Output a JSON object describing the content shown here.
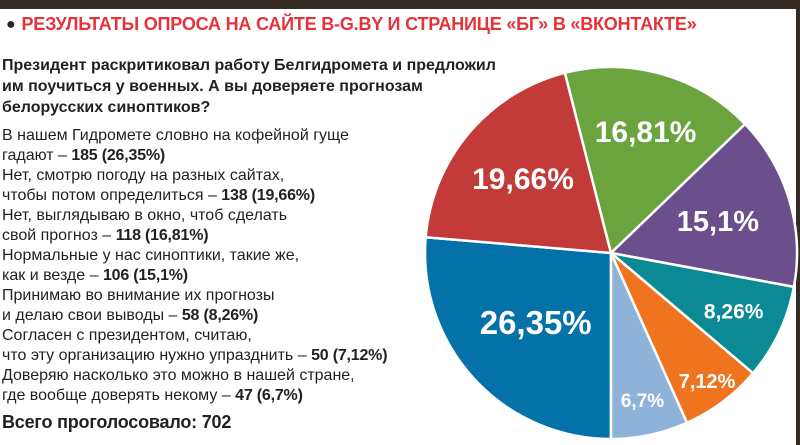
{
  "page": {
    "title_bullet": "●",
    "title": "РЕЗУЛЬТАТЫ ОПРОСА НА САЙТЕ B-G.BY И СТРАНИЦЕ «БГ» В «ВКОНТАКТЕ»",
    "question": "Президент раскритиковал работу Белгидромета и предложил\nим поучиться у военных. А вы доверяете прогнозам\nбелорусских синоптиков?",
    "answers": [
      {
        "text": "В нашем Гидромете словно на кофейной гуще\nгадают – ",
        "value": "185 (26,35%)"
      },
      {
        "text": "Нет, смотрю погоду на разных сайтах,\nчтобы потом определиться – ",
        "value": "138 (19,66%)"
      },
      {
        "text": "Нет, выглядываю в окно, чтоб сделать\nсвой прогноз – ",
        "value": "118 (16,81%)"
      },
      {
        "text": "Нормальные у нас синоптики, такие же,\nкак и везде – ",
        "value": "106 (15,1%)"
      },
      {
        "text": "Принимаю во внимание их прогнозы\nи делаю свои выводы – ",
        "value": "58 (8,26%)"
      },
      {
        "text": "Согласен с президентом, считаю,\nчто эту организацию нужно упразднить – ",
        "value": "50 (7,12%)"
      },
      {
        "text": "Доверяю насколько это можно в нашей стране,\nгде вообще доверять некому – ",
        "value": "47 (6,7%)"
      }
    ],
    "total_label": "Всего проголосовало: 702"
  },
  "colors": {
    "title_red": "#e5333a",
    "text": "#231f20",
    "frame_dark": "#342b24",
    "background": "#ffffff"
  },
  "chart_data": {
    "type": "pie",
    "title": "А вы доверяете прогнозам белорусских синоптиков?",
    "total_votes": 702,
    "start_angle_deg": 180,
    "clockwise": true,
    "stroke": "#ffffff",
    "stroke_width": 2.5,
    "slices": [
      {
        "label": "26,35%",
        "value": 26.35,
        "votes": 185,
        "answer": "В нашем Гидромете словно на кофейной гуще гадают",
        "color": "#0471a8",
        "label_r": 0.55,
        "label_size": 33
      },
      {
        "label": "19,66%",
        "value": 19.66,
        "votes": 138,
        "answer": "Нет, смотрю погоду на разных сайтах, чтобы потом определиться",
        "color": "#c23b38",
        "label_r": 0.62,
        "label_size": 30
      },
      {
        "label": "16,81%",
        "value": 16.81,
        "votes": 118,
        "answer": "Нет, выглядываю в окно, чтоб сделать свой прогноз",
        "color": "#6ba33e",
        "label_r": 0.68,
        "label_size": 30
      },
      {
        "label": "15,1%",
        "value": 15.1,
        "votes": 106,
        "answer": "Нормальные у нас синоптики, такие же, как и везде",
        "color": "#6a4f8c",
        "label_r": 0.6,
        "label_size": 29
      },
      {
        "label": "8,26%",
        "value": 8.26,
        "votes": 58,
        "answer": "Принимаю во внимание их прогнозы и делаю свои выводы",
        "color": "#0b8a96",
        "label_r": 0.73,
        "label_size": 21
      },
      {
        "label": "7,12%",
        "value": 7.12,
        "votes": 50,
        "answer": "Согласен с президентом, считаю, что эту организацию нужно упразднить",
        "color": "#f0731e",
        "label_r": 0.86,
        "label_size": 20
      },
      {
        "label": "6,7%",
        "value": 6.7,
        "votes": 47,
        "answer": "Доверяю насколько это можно в нашей стране, где вообще доверять некому",
        "color": "#8fb2d8",
        "label_r": 0.81,
        "label_size": 19
      }
    ]
  }
}
